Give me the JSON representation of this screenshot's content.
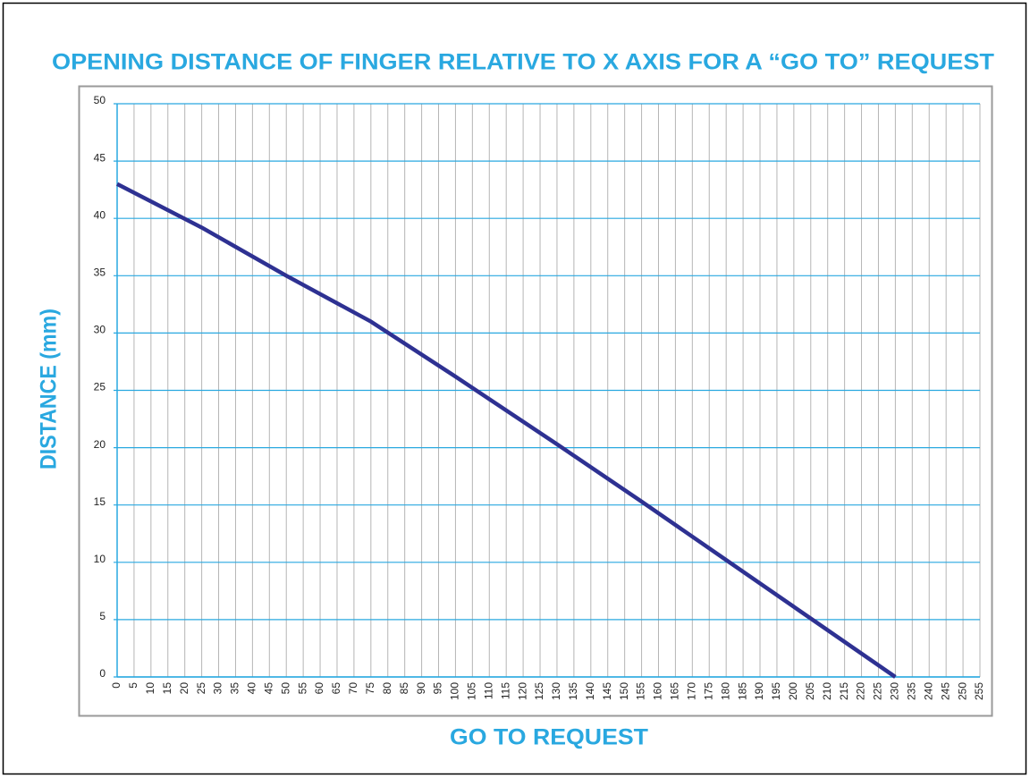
{
  "chart_data": {
    "type": "line",
    "title": "OPENING DISTANCE OF FINGER RELATIVE TO X AXIS FOR A “GO TO” REQUEST",
    "x_label": "GO TO REQUEST",
    "y_label": "DISTANCE (mm)",
    "x": [
      0,
      25,
      50,
      75,
      100,
      130,
      155,
      180,
      205,
      230
    ],
    "values": [
      43,
      39.2,
      35,
      31,
      26.2,
      20.3,
      15.3,
      10.2,
      5.1,
      0
    ],
    "color": "#2e3192",
    "xlim": [
      0,
      255
    ],
    "xticks": [
      0,
      5,
      10,
      15,
      20,
      25,
      30,
      35,
      40,
      45,
      50,
      55,
      60,
      65,
      70,
      75,
      80,
      85,
      90,
      95,
      100,
      105,
      110,
      115,
      120,
      125,
      130,
      135,
      140,
      145,
      150,
      155,
      160,
      165,
      170,
      175,
      180,
      185,
      190,
      195,
      200,
      205,
      210,
      215,
      220,
      225,
      230,
      235,
      240,
      245,
      250,
      255
    ],
    "ylim": [
      0,
      50
    ],
    "yticks": [
      0,
      5,
      10,
      15,
      20,
      25,
      30,
      35,
      40,
      45,
      50
    ],
    "grid": true
  }
}
